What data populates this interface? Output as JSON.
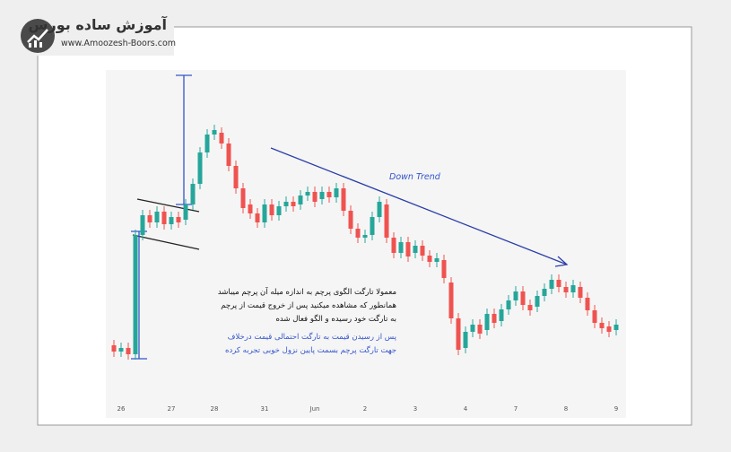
{
  "logo": {
    "title": "آموزش ساده بورس",
    "url": "www.Amoozesh-Boors.com"
  },
  "chart_data": {
    "type": "candlestick",
    "categories": [
      null,
      "26",
      null,
      null,
      null,
      null,
      null,
      null,
      "27",
      null,
      null,
      null,
      null,
      null,
      "28",
      null,
      null,
      null,
      null,
      null,
      null,
      "31",
      null,
      null,
      null,
      null,
      null,
      null,
      "Jun",
      null,
      null,
      null,
      null,
      null,
      null,
      "2",
      null,
      null,
      null,
      null,
      null,
      null,
      "3",
      null,
      null,
      null,
      null,
      null,
      null,
      "4",
      null,
      null,
      null,
      null,
      null,
      null,
      "7",
      null,
      null,
      null,
      null,
      null,
      null,
      "8",
      null,
      null,
      null,
      null,
      null,
      null,
      "9"
    ],
    "open": [
      60,
      53,
      57,
      50,
      183,
      205,
      197,
      209,
      195,
      203,
      200,
      217,
      240,
      275,
      295,
      297,
      285,
      260,
      235,
      217,
      207,
      197,
      217,
      205,
      215,
      220,
      217,
      227,
      231,
      223,
      231,
      225,
      235,
      210,
      190,
      180,
      183,
      203,
      217,
      180,
      163,
      175,
      163,
      171,
      160,
      153,
      155,
      130,
      90,
      57,
      75,
      83,
      77,
      95,
      87,
      100,
      110,
      120,
      105,
      103,
      115,
      123,
      133,
      125,
      119,
      125,
      113,
      99,
      85,
      81,
      77
    ],
    "high": [
      66,
      63,
      63,
      189,
      211,
      211,
      215,
      215,
      209,
      209,
      223,
      246,
      281,
      301,
      306,
      303,
      291,
      266,
      241,
      223,
      213,
      223,
      223,
      221,
      226,
      226,
      233,
      237,
      237,
      237,
      237,
      241,
      241,
      216,
      196,
      189,
      209,
      226,
      223,
      186,
      181,
      181,
      177,
      177,
      166,
      163,
      161,
      136,
      96,
      81,
      89,
      89,
      101,
      101,
      106,
      116,
      126,
      126,
      111,
      121,
      129,
      139,
      139,
      131,
      133,
      131,
      119,
      105,
      91,
      87,
      89
    ],
    "low": [
      47,
      47,
      44,
      44,
      177,
      191,
      191,
      189,
      189,
      191,
      194,
      211,
      234,
      269,
      289,
      279,
      254,
      229,
      207,
      201,
      191,
      191,
      199,
      199,
      209,
      209,
      211,
      221,
      214,
      217,
      219,
      219,
      204,
      184,
      174,
      174,
      177,
      197,
      174,
      157,
      157,
      153,
      157,
      154,
      147,
      147,
      129,
      84,
      49,
      51,
      69,
      67,
      71,
      79,
      81,
      94,
      104,
      99,
      93,
      97,
      109,
      117,
      119,
      113,
      113,
      107,
      93,
      79,
      73,
      69,
      71
    ],
    "close": [
      53,
      57,
      50,
      183,
      205,
      197,
      209,
      195,
      203,
      197,
      217,
      240,
      275,
      295,
      300,
      285,
      260,
      235,
      213,
      207,
      197,
      217,
      205,
      215,
      220,
      215,
      227,
      231,
      220,
      231,
      225,
      235,
      210,
      190,
      180,
      183,
      203,
      220,
      180,
      163,
      175,
      159,
      171,
      160,
      153,
      157,
      135,
      90,
      55,
      75,
      83,
      73,
      95,
      85,
      100,
      110,
      120,
      105,
      99,
      115,
      123,
      133,
      125,
      119,
      127,
      113,
      99,
      85,
      79,
      75,
      83
    ],
    "ylim": [
      0,
      365
    ],
    "up_color": "#26a69a",
    "down_color": "#ef5350",
    "annotation": "Down Trend",
    "notes": [
      "معمولا تارگت الگوی پرچم به اندازه میله آن پرچم میباشد",
      "همانطور که مشاهده میکنید پس از خروج قیمت از پرچم",
      "به تارگت خود رسیده و الگو فعال شده"
    ],
    "blue_notes": [
      "پس از رسیدن قیمت به تارگت احتمالی قیمت درخلاف",
      "جهت تارگت پرچم بسمت پایین نزول خوبی تجربه کرده"
    ]
  }
}
